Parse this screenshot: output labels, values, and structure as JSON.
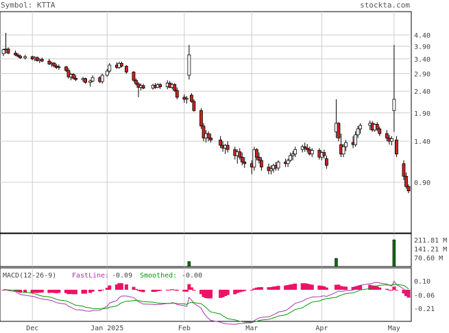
{
  "header": {
    "symbol_label": "Symbol: KTTA",
    "site": "stockta.com"
  },
  "chart_data": {
    "type": "candlestick",
    "symbol": "KTTA",
    "price_axis": {
      "scale": "log",
      "ticks": [
        0.9,
        1.4,
        1.9,
        2.4,
        2.9,
        3.4,
        3.9,
        4.4
      ],
      "tick_labels": [
        "0.90",
        "1.40",
        "1.90",
        "2.40",
        "2.90",
        "3.40",
        "3.90",
        "4.40"
      ]
    },
    "month_labels": [
      "Dec",
      "Jan 2025",
      "Feb",
      "Mar",
      "Apr",
      "May"
    ],
    "month_dates": [
      "2024-12-02",
      "2025-01-02",
      "2025-02-03",
      "2025-03-03",
      "2025-04-01",
      "2025-05-01"
    ],
    "candles": [
      [
        "2024-11-20",
        3.6,
        3.8,
        3.5,
        3.75
      ],
      [
        "2024-11-21",
        3.75,
        4.5,
        3.6,
        3.78
      ],
      [
        "2024-11-22",
        3.78,
        3.85,
        3.58,
        3.62
      ],
      [
        "2024-11-25",
        3.62,
        3.72,
        3.5,
        3.55
      ],
      [
        "2024-11-26",
        3.55,
        3.62,
        3.45,
        3.5
      ],
      [
        "2024-11-27",
        3.5,
        3.56,
        3.4,
        3.44
      ],
      [
        "2024-11-29",
        3.44,
        3.55,
        3.38,
        3.48
      ],
      [
        "2024-12-02",
        3.48,
        3.52,
        3.35,
        3.4
      ],
      [
        "2024-12-03",
        3.4,
        3.5,
        3.32,
        3.45
      ],
      [
        "2024-12-04",
        3.45,
        3.49,
        3.3,
        3.34
      ],
      [
        "2024-12-05",
        3.34,
        3.42,
        3.25,
        3.38
      ],
      [
        "2024-12-06",
        3.38,
        3.45,
        3.28,
        3.32
      ],
      [
        "2024-12-09",
        3.32,
        3.4,
        3.18,
        3.22
      ],
      [
        "2024-12-10",
        3.22,
        3.3,
        3.12,
        3.25
      ],
      [
        "2024-12-11",
        3.25,
        3.28,
        3.1,
        3.15
      ],
      [
        "2024-12-12",
        3.15,
        3.22,
        3.05,
        3.1
      ],
      [
        "2024-12-13",
        3.1,
        3.2,
        3.02,
        3.12
      ],
      [
        "2024-12-16",
        3.12,
        3.15,
        2.95,
        3.0
      ],
      [
        "2024-12-17",
        3.0,
        3.08,
        2.75,
        2.8
      ],
      [
        "2024-12-18",
        2.8,
        2.92,
        2.7,
        2.88
      ],
      [
        "2024-12-19",
        2.88,
        2.92,
        2.72,
        2.76
      ],
      [
        "2024-12-20",
        2.76,
        2.85,
        2.68,
        2.72
      ],
      [
        "2024-12-23",
        2.72,
        2.8,
        2.65,
        2.75
      ],
      [
        "2024-12-24",
        2.75,
        2.78,
        2.6,
        2.64
      ],
      [
        "2024-12-26",
        2.64,
        2.72,
        2.52,
        2.68
      ],
      [
        "2024-12-27",
        2.68,
        2.85,
        2.64,
        2.78
      ],
      [
        "2024-12-30",
        2.78,
        2.82,
        2.62,
        2.66
      ],
      [
        "2024-12-31",
        2.66,
        2.9,
        2.6,
        2.85
      ],
      [
        "2025-01-02",
        2.85,
        3.05,
        2.8,
        2.98
      ],
      [
        "2025-01-03",
        2.98,
        3.25,
        2.92,
        3.18
      ],
      [
        "2025-01-06",
        3.18,
        3.28,
        3.05,
        3.1
      ],
      [
        "2025-01-07",
        3.1,
        3.3,
        3.05,
        3.24
      ],
      [
        "2025-01-08",
        3.24,
        3.3,
        3.1,
        3.14
      ],
      [
        "2025-01-10",
        3.14,
        3.18,
        2.9,
        2.95
      ],
      [
        "2025-01-13",
        2.95,
        2.98,
        2.65,
        2.7
      ],
      [
        "2025-01-14",
        2.7,
        2.75,
        2.55,
        2.6
      ],
      [
        "2025-01-15",
        2.6,
        2.65,
        2.25,
        2.5
      ],
      [
        "2025-01-16",
        2.5,
        2.6,
        2.42,
        2.55
      ],
      [
        "2025-01-17",
        2.55,
        2.6,
        2.45,
        2.48
      ],
      [
        "2025-01-21",
        2.48,
        2.6,
        2.44,
        2.56
      ],
      [
        "2025-01-22",
        2.56,
        2.62,
        2.46,
        2.5
      ],
      [
        "2025-01-23",
        2.5,
        2.62,
        2.48,
        2.58
      ],
      [
        "2025-01-24",
        2.58,
        2.62,
        2.46,
        2.52
      ],
      [
        "2025-01-27",
        2.52,
        2.7,
        2.45,
        2.62
      ],
      [
        "2025-01-28",
        2.62,
        2.68,
        2.48,
        2.5
      ],
      [
        "2025-01-29",
        2.5,
        2.62,
        2.45,
        2.58
      ],
      [
        "2025-01-30",
        2.58,
        2.62,
        2.38,
        2.42
      ],
      [
        "2025-01-31",
        2.42,
        2.5,
        2.2,
        2.25
      ],
      [
        "2025-02-03",
        2.25,
        2.32,
        2.12,
        2.2
      ],
      [
        "2025-02-04",
        2.2,
        2.28,
        2.1,
        2.22
      ],
      [
        "2025-02-05",
        2.85,
        3.95,
        2.72,
        3.55
      ],
      [
        "2025-02-06",
        2.3,
        2.35,
        2.12,
        2.15
      ],
      [
        "2025-02-07",
        2.15,
        2.2,
        1.92,
        1.95
      ],
      [
        "2025-02-10",
        1.95,
        2.0,
        1.6,
        1.65
      ],
      [
        "2025-02-11",
        1.65,
        1.7,
        1.4,
        1.45
      ],
      [
        "2025-02-12",
        1.45,
        1.58,
        1.38,
        1.52
      ],
      [
        "2025-02-13",
        1.52,
        1.56,
        1.4,
        1.45
      ],
      [
        "2025-02-14",
        1.45,
        1.52,
        1.38,
        1.42
      ],
      [
        "2025-02-18",
        1.42,
        1.48,
        1.3,
        1.34
      ],
      [
        "2025-02-19",
        1.34,
        1.4,
        1.25,
        1.3
      ],
      [
        "2025-02-20",
        1.3,
        1.36,
        1.22,
        1.34
      ],
      [
        "2025-02-21",
        1.34,
        1.4,
        1.24,
        1.28
      ],
      [
        "2025-02-24",
        1.28,
        1.32,
        1.15,
        1.2
      ],
      [
        "2025-02-25",
        1.2,
        1.28,
        1.1,
        1.25
      ],
      [
        "2025-02-26",
        1.25,
        1.3,
        1.15,
        1.18
      ],
      [
        "2025-02-27",
        1.18,
        1.24,
        1.08,
        1.12
      ],
      [
        "2025-02-28",
        1.12,
        1.18,
        1.05,
        1.1
      ],
      [
        "2025-03-03",
        1.1,
        1.14,
        0.98,
        1.06
      ],
      [
        "2025-03-04",
        1.06,
        1.32,
        1.02,
        1.28
      ],
      [
        "2025-03-05",
        1.28,
        1.3,
        1.14,
        1.18
      ],
      [
        "2025-03-06",
        1.18,
        1.24,
        1.1,
        1.14
      ],
      [
        "2025-03-07",
        1.14,
        1.18,
        1.02,
        1.06
      ],
      [
        "2025-03-10",
        1.06,
        1.1,
        0.98,
        1.02
      ],
      [
        "2025-03-11",
        1.02,
        1.08,
        0.98,
        1.04
      ],
      [
        "2025-03-12",
        1.04,
        1.1,
        1.0,
        1.08
      ],
      [
        "2025-03-13",
        1.08,
        1.12,
        1.02,
        1.05
      ],
      [
        "2025-03-14",
        1.05,
        1.14,
        1.02,
        1.12
      ],
      [
        "2025-03-17",
        1.12,
        1.16,
        1.06,
        1.1
      ],
      [
        "2025-03-18",
        1.1,
        1.16,
        1.06,
        1.14
      ],
      [
        "2025-03-19",
        1.14,
        1.24,
        1.12,
        1.2
      ],
      [
        "2025-03-20",
        1.2,
        1.26,
        1.14,
        1.22
      ],
      [
        "2025-03-21",
        1.22,
        1.32,
        1.18,
        1.28
      ],
      [
        "2025-03-24",
        1.28,
        1.35,
        1.24,
        1.32
      ],
      [
        "2025-03-25",
        1.32,
        1.38,
        1.25,
        1.3
      ],
      [
        "2025-03-26",
        1.3,
        1.36,
        1.24,
        1.28
      ],
      [
        "2025-03-27",
        1.28,
        1.32,
        1.2,
        1.22
      ],
      [
        "2025-03-28",
        1.22,
        1.3,
        1.18,
        1.27
      ],
      [
        "2025-03-31",
        1.27,
        1.3,
        1.15,
        1.18
      ],
      [
        "2025-04-01",
        1.18,
        1.26,
        1.14,
        1.24
      ],
      [
        "2025-04-02",
        1.24,
        1.28,
        1.16,
        1.2
      ],
      [
        "2025-04-03",
        1.16,
        1.2,
        1.04,
        1.08
      ],
      [
        "2025-04-07",
        1.55,
        2.2,
        1.45,
        1.7
      ],
      [
        "2025-04-08",
        1.7,
        1.72,
        1.4,
        1.45
      ],
      [
        "2025-04-09",
        1.35,
        1.52,
        1.18,
        1.22
      ],
      [
        "2025-04-10",
        1.22,
        1.36,
        1.18,
        1.32
      ],
      [
        "2025-04-11",
        1.32,
        1.42,
        1.26,
        1.38
      ],
      [
        "2025-04-14",
        1.38,
        1.48,
        1.3,
        1.35
      ],
      [
        "2025-04-15",
        1.35,
        1.56,
        1.32,
        1.5
      ],
      [
        "2025-04-16",
        1.5,
        1.65,
        1.45,
        1.6
      ],
      [
        "2025-04-17",
        1.6,
        1.7,
        1.52,
        1.66
      ],
      [
        "2025-04-21",
        1.66,
        1.75,
        1.58,
        1.7
      ],
      [
        "2025-04-22",
        1.7,
        1.74,
        1.55,
        1.58
      ],
      [
        "2025-04-23",
        1.58,
        1.7,
        1.55,
        1.68
      ],
      [
        "2025-04-24",
        1.68,
        1.72,
        1.56,
        1.6
      ],
      [
        "2025-04-25",
        1.6,
        1.64,
        1.48,
        1.52
      ],
      [
        "2025-04-28",
        1.52,
        1.58,
        1.4,
        1.45
      ],
      [
        "2025-04-29",
        1.45,
        1.5,
        1.35,
        1.4
      ],
      [
        "2025-04-30",
        1.4,
        1.48,
        1.34,
        1.44
      ],
      [
        "2025-05-01",
        1.95,
        3.95,
        1.55,
        2.2
      ],
      [
        "2025-05-02",
        1.42,
        1.48,
        1.18,
        1.22
      ],
      [
        "2025-05-05",
        1.1,
        1.14,
        0.92,
        0.96
      ],
      [
        "2025-05-06",
        0.96,
        1.0,
        0.84,
        0.86
      ],
      [
        "2025-05-07",
        0.86,
        0.88,
        0.8,
        0.82
      ]
    ],
    "volume_panel": {
      "tick_labels": [
        "211.81 M",
        "141.21 M",
        "70.60 M"
      ],
      "ticks": [
        211.81,
        141.21,
        70.6
      ],
      "unit": "M",
      "spikes": [
        [
          "2025-02-05",
          40
        ],
        [
          "2025-04-07",
          65
        ],
        [
          "2025-05-01",
          211.81
        ]
      ]
    },
    "macd_panel": {
      "label": "MACD(12-26-9)",
      "fast_label": "FastLine:",
      "fast_value": "-0.09",
      "smooth_label": "Smoothed:",
      "smooth_value": "-0.00",
      "tick_labels": [
        "0.10",
        "-0.06",
        "-0.21"
      ],
      "ticks": [
        0.1,
        -0.06,
        -0.21
      ],
      "fast_color": "#aa33aa",
      "slow_color": "#009900",
      "hist_color": "#ee1166"
    },
    "colors": {
      "up_fill": "#ffffff",
      "down_fill": "#cc2222",
      "volume": "#116611",
      "grid": "#cccccc",
      "frame": "#000000"
    }
  }
}
